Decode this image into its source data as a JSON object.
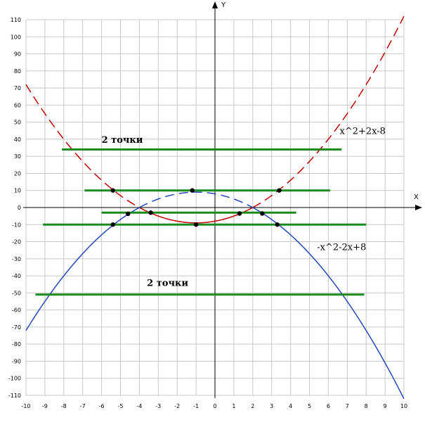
{
  "chart_data": {
    "type": "line",
    "xlabel": "X",
    "ylabel": "Y",
    "xlim": [
      -10,
      10
    ],
    "ylim": [
      -110,
      110
    ],
    "x_ticks": [
      -10,
      -9,
      -8,
      -7,
      -6,
      -5,
      -4,
      -3,
      -2,
      -1,
      0,
      1,
      2,
      3,
      4,
      5,
      6,
      7,
      8,
      9,
      10
    ],
    "y_ticks": [
      110,
      100,
      90,
      80,
      70,
      60,
      50,
      40,
      30,
      20,
      10,
      0,
      -10,
      -20,
      -30,
      -40,
      -50,
      -60,
      -70,
      -80,
      -90,
      -100,
      -110
    ],
    "grid": true,
    "colors": {
      "grid": "#c8c8c8",
      "red": "#c00000",
      "blue": "#2448b8",
      "green": "#1d8a1d",
      "point": "#000000"
    },
    "curves": [
      {
        "label": "x^2+2x-8",
        "color": "#c00000",
        "coefficients": [
          1,
          2,
          -8
        ],
        "solid_x": [
          -4,
          2
        ],
        "dashed_elsewhere": true
      },
      {
        "label": "-x^2-2x+8",
        "color": "#2448b8",
        "coefficients": [
          -1,
          -2,
          8
        ],
        "dashed_x": [
          -4,
          2
        ],
        "solid_elsewhere": true
      }
    ],
    "horizontal_lines": [
      {
        "y": 34,
        "x": [
          -8.1,
          6.7
        ]
      },
      {
        "y": 10,
        "x": [
          -6.9,
          6.1
        ]
      },
      {
        "y": -3,
        "x": [
          -6,
          4.3
        ]
      },
      {
        "y": -10,
        "x": [
          -9.1,
          8
        ]
      },
      {
        "y": -51,
        "x": [
          -9.5,
          7.9
        ]
      }
    ],
    "points": [
      {
        "x": -5.4,
        "y": 10
      },
      {
        "x": -1.2,
        "y": 10
      },
      {
        "x": 3.4,
        "y": 10
      },
      {
        "x": -4.6,
        "y": -3.7
      },
      {
        "x": -3.4,
        "y": -3
      },
      {
        "x": 1.3,
        "y": -3.5
      },
      {
        "x": 2.5,
        "y": -3.5
      },
      {
        "x": -5.4,
        "y": -10
      },
      {
        "x": -1,
        "y": -10
      },
      {
        "x": 3.3,
        "y": -10
      }
    ],
    "annotations": [
      {
        "text": "2 точки",
        "x": -6.0,
        "y": 38
      },
      {
        "text": "x^2+2x-8",
        "x": 6.6,
        "y": 43
      },
      {
        "text": "-x^2-2x+8",
        "x": 5.4,
        "y": -25
      },
      {
        "text": "2 точки",
        "x": -3.6,
        "y": -46
      }
    ]
  }
}
